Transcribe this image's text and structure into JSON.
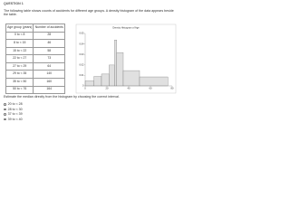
{
  "header": {
    "title": "QUESTION 1",
    "text": "The following table shows counts of accidents for different age groups. A density histogram of the data appears beside the table."
  },
  "table": {
    "columns": [
      "Age group (years)",
      "Number of accidents"
    ],
    "rows": [
      [
        "0 to < 8",
        28
      ],
      [
        "8 to < 15",
        46
      ],
      [
        "15 to < 22",
        58
      ],
      [
        "22 to < 27",
        73
      ],
      [
        "27 to < 29",
        64
      ],
      [
        "29 to < 35",
        140
      ],
      [
        "35 to < 50",
        160
      ],
      [
        "50 to < 76",
        164
      ]
    ]
  },
  "chart_data": {
    "type": "histogram",
    "title": "Density Histogram of Age",
    "bins": [
      0,
      8,
      15,
      22,
      27,
      29,
      35,
      50,
      76
    ],
    "values": [
      0.0048,
      0.009,
      0.0113,
      0.0199,
      0.0437,
      0.0318,
      0.0146,
      0.0086
    ],
    "color": "#e0e0e0",
    "xlim": [
      0,
      80
    ],
    "xticks": [
      0,
      20,
      40,
      60,
      80
    ],
    "ylim": [
      0,
      0.05
    ],
    "yticks": [
      0,
      0.01,
      0.02,
      0.03,
      0.04,
      0.05
    ]
  },
  "question": {
    "text": "Estimate the median directly from the histogram by choosing the correct interval.",
    "options": [
      "20 to < 28",
      "28 to < 30",
      "37 to < 39",
      "39 to < 40"
    ]
  }
}
